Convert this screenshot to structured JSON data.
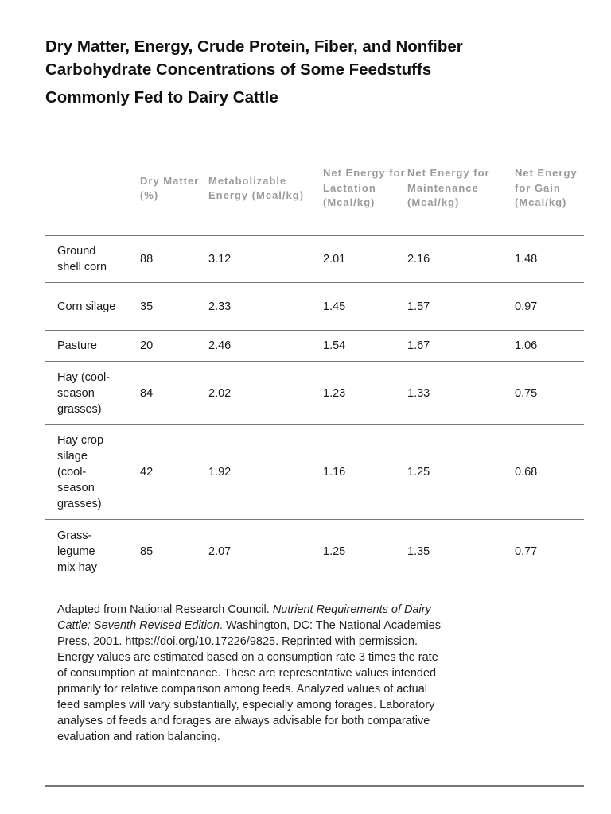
{
  "title": {
    "line1": "Dry Matter, Energy, Crude Protein, Fiber, and Nonfiber Carbohydrate Concentrations of Some Feedstuffs",
    "line2": "Commonly Fed to Dairy Cattle"
  },
  "table": {
    "headers": [
      "",
      "Dry Matter (%)",
      "Metabolizable Energy (Mcal/kg)",
      "Net Energy for Lactation (Mcal/kg)",
      "Net Energy for Maintenance (Mcal/kg)",
      "Net Energy for Gain (Mcal/kg)"
    ],
    "rows": [
      [
        "Ground shell corn",
        "88",
        "3.12",
        "2.01",
        "2.16",
        "1.48"
      ],
      [
        "Corn silage",
        "35",
        "2.33",
        "1.45",
        "1.57",
        "0.97"
      ],
      [
        "Pasture",
        "20",
        "2.46",
        "1.54",
        "1.67",
        "1.06"
      ],
      [
        "Hay (cool-season grasses)",
        "84",
        "2.02",
        "1.23",
        "1.33",
        "0.75"
      ],
      [
        "Hay crop silage (cool-season grasses)",
        "42",
        "1.92",
        "1.16",
        "1.25",
        "0.68"
      ],
      [
        "Grass-legume mix hay",
        "85",
        "2.07",
        "1.25",
        "1.35",
        "0.77"
      ]
    ]
  },
  "notes": {
    "source_prefix": "Adapted from National Research Council. ",
    "source_title": "Nutrient Requirements of Dairy Cattle: Seventh Revised Edition",
    "source_suffix": ". Washington, DC: The National Academies Press, 2001. https://doi.org/10.17226/9825. Reprinted with permission.",
    "energy_note": "Energy values are estimated based on a consumption rate 3 times the rate of consumption at maintenance. These are representative values intended primarily for relative comparison among feeds. Analyzed values of actual feed samples will vary substantially, especially among forages. Laboratory analyses of feeds and forages are always advisable for both comparative evaluation and ration balancing."
  }
}
